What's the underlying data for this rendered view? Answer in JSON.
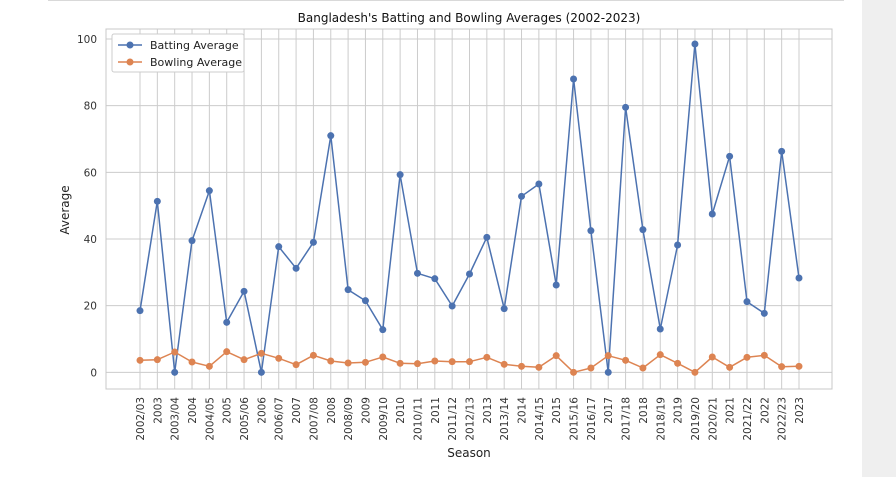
{
  "colors": {
    "batting": "#4c72b0",
    "bowling": "#dd8452",
    "grid": "#cccccc",
    "frame": "#c8c8c8"
  },
  "chart_data": {
    "type": "line",
    "title": "Bangladesh's Batting and Bowling Averages (2002-2023)",
    "xlabel": "Season",
    "ylabel": "Average",
    "ylim": [
      -5,
      103
    ],
    "yticks": [
      0,
      20,
      40,
      60,
      80,
      100
    ],
    "grid": true,
    "legend_position": "top-left",
    "categories": [
      "2002/03",
      "2003",
      "2003/04",
      "2004",
      "2004/05",
      "2005",
      "2005/06",
      "2006",
      "2006/07",
      "2007",
      "2007/08",
      "2008",
      "2008/09",
      "2009",
      "2009/10",
      "2010",
      "2010/11",
      "2011",
      "2011/12",
      "2012/13",
      "2013",
      "2013/14",
      "2014",
      "2014/15",
      "2015",
      "2015/16",
      "2016/17",
      "2017",
      "2017/18",
      "2018",
      "2018/19",
      "2019",
      "2019/20",
      "2020/21",
      "2021",
      "2021/22",
      "2022",
      "2022/23",
      "2023"
    ],
    "series": [
      {
        "name": "Batting Average",
        "values": [
          18.5,
          51.3,
          0,
          39.5,
          54.5,
          15,
          24.3,
          0,
          37.7,
          31.2,
          39,
          71,
          24.8,
          21.5,
          12.8,
          59.3,
          29.7,
          28.1,
          19.9,
          29.5,
          40.5,
          19.1,
          52.8,
          56.5,
          26.2,
          88,
          42.5,
          0,
          79.5,
          42.8,
          13,
          38.2,
          98.5,
          47.5,
          64.8,
          21.2,
          17.7,
          66.3,
          28.3
        ]
      },
      {
        "name": "Bowling Average",
        "values": [
          3.6,
          3.8,
          6.1,
          3.1,
          1.8,
          6.2,
          3.8,
          5.7,
          4.2,
          2.3,
          5.1,
          3.4,
          2.8,
          3,
          4.6,
          2.7,
          2.6,
          3.4,
          3.2,
          3.2,
          4.5,
          2.4,
          1.8,
          1.5,
          5,
          0,
          1.3,
          5,
          3.6,
          1.3,
          5.3,
          2.7,
          0,
          4.6,
          1.5,
          4.5,
          5.1,
          1.7,
          1.8
        ]
      }
    ]
  }
}
